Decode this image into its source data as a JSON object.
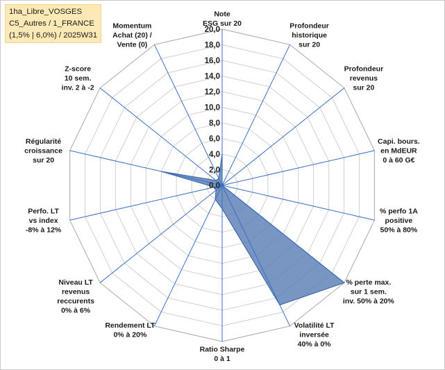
{
  "info_box": {
    "line1": "1ha_Libre_VOSGES",
    "line2": "C5_Autres / 1_FRANCE",
    "line3": "(1,5% | 6,0%) / 2025W31"
  },
  "chart_data": {
    "type": "radar",
    "axes": [
      [
        "Note",
        "ESG sur 20"
      ],
      [
        "Profondeur",
        "historique",
        "sur 20"
      ],
      [
        "Profondeur",
        "revenus",
        "sur 20"
      ],
      [
        "Capi. bours.",
        "en MdEUR",
        "0 à 60 G€"
      ],
      [
        "% perfo 1A",
        "positive",
        "50% à 80%"
      ],
      [
        "% perte max.",
        "sur 1 sem.",
        "inv. 50% à 20%"
      ],
      [
        "Volatilité LT",
        "inversée",
        "40% à 0%"
      ],
      [
        "Ratio Sharpe",
        "0 à 1"
      ],
      [
        "Rendement LT",
        "0% à 20%"
      ],
      [
        "Niveau LT",
        "revenus",
        "reccurents",
        "0% à 6%"
      ],
      [
        "Perfo. LT",
        "vs index",
        "-8% à 12%"
      ],
      [
        "Régularité",
        "croissance",
        "sur 20"
      ],
      [
        "Z-score",
        "10 sem.",
        "inv. 2 à -2"
      ],
      [
        "Momentum",
        "Achat (20) /",
        "Vente (0)"
      ]
    ],
    "rlim": [
      0,
      20
    ],
    "ticks": [
      "0,0",
      "2,0",
      "4,0",
      "6,0",
      "8,0",
      "10,0",
      "12,0",
      "14,0",
      "16,0",
      "18,0",
      "20,0"
    ],
    "series": [
      {
        "values": [
          4,
          0,
          0,
          0,
          0,
          20,
          17,
          3,
          2,
          1,
          1,
          8,
          1,
          1
        ]
      }
    ],
    "grid": true,
    "colors": {
      "fill": "#5b7fb4",
      "fill_opacity": "0.82",
      "series_line": "#3e6aa8",
      "spoke": "#3a6fc4",
      "grid": "#d0d0d0"
    }
  }
}
